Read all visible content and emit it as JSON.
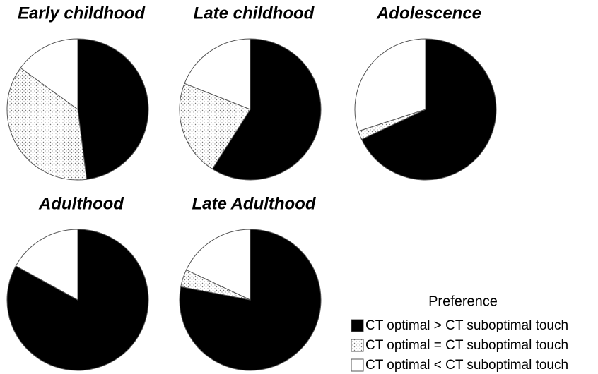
{
  "legend": {
    "title": "Preference",
    "labels": [
      "CT optimal > CT suboptimal touch",
      "CT optimal = CT suboptimal touch",
      "CT optimal < CT suboptimal touch"
    ],
    "fills": [
      "#000000",
      "dots",
      "#ffffff"
    ]
  },
  "chart_data": [
    {
      "type": "pie",
      "title": "Early childhood",
      "values": [
        48,
        37,
        15
      ]
    },
    {
      "type": "pie",
      "title": "Late childhood",
      "values": [
        59,
        22,
        19
      ]
    },
    {
      "type": "pie",
      "title": "Adolescence",
      "values": [
        68,
        2,
        30
      ]
    },
    {
      "type": "pie",
      "title": "Adulthood",
      "values": [
        83,
        0,
        17
      ]
    },
    {
      "type": "pie",
      "title": "Late Adulthood",
      "values": [
        78,
        4,
        18
      ]
    }
  ]
}
